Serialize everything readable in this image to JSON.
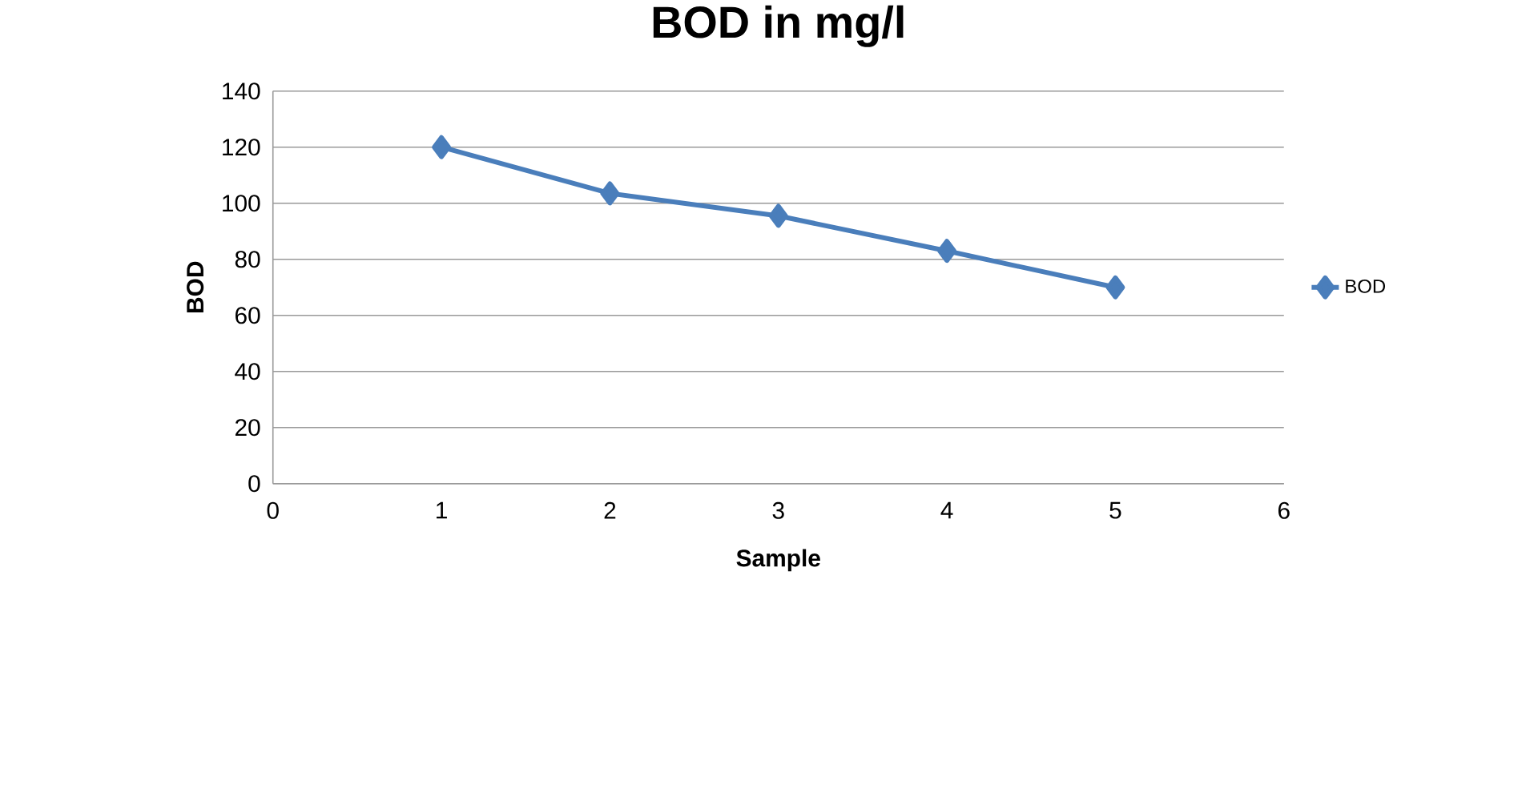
{
  "chart_data": {
    "type": "line",
    "title": "BOD in mg/l",
    "xlabel": "Sample",
    "ylabel": "BOD",
    "x": [
      1,
      2,
      3,
      4,
      5
    ],
    "series": [
      {
        "name": "BOD",
        "color": "#4a7ebb",
        "values": [
          120,
          103.5,
          95.5,
          83,
          70
        ]
      }
    ],
    "xlim": [
      0,
      6
    ],
    "xticks": [
      0,
      1,
      2,
      3,
      4,
      5,
      6
    ],
    "ylim": [
      0,
      140
    ],
    "yticks": [
      0,
      20,
      40,
      60,
      80,
      100,
      120,
      140
    ],
    "grid": "y",
    "legend": "right",
    "marker": "diamond",
    "line_style": "solid"
  }
}
